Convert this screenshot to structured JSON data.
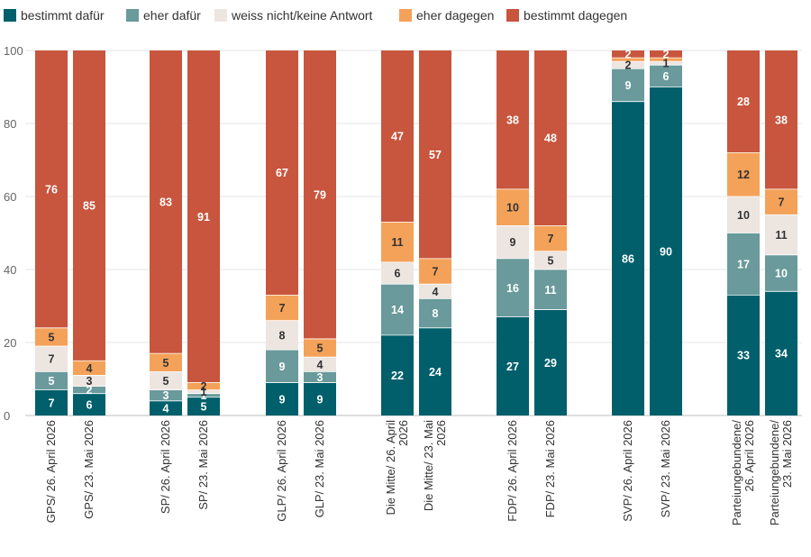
{
  "colors": {
    "bestimmt_dafuer": "#005f6b",
    "eher_dafuer": "#6a9a9b",
    "weiss_nicht": "#ede5e0",
    "eher_dagegen": "#f4a259",
    "bestimmt_dagegen": "#c8553d",
    "grid": "#e6e6e6",
    "axis_text": "#666666"
  },
  "chart_data": {
    "type": "bar",
    "stacked": true,
    "legend_position": "top-left",
    "grid": true,
    "ylim": [
      0,
      100
    ],
    "yticks": [
      0,
      20,
      40,
      60,
      80,
      100
    ],
    "categories": [
      [
        "GPS/ 26. April 2026"
      ],
      [
        "GPS/ 23. Mai 2026"
      ],
      [
        "SP/ 26. April 2026"
      ],
      [
        "SP/ 23. Mai 2026"
      ],
      [
        "GLP/ 26. April 2026"
      ],
      [
        "GLP/ 23. Mai 2026"
      ],
      [
        "Die Mitte/ 26. April",
        "2026"
      ],
      [
        "Die Mitte/ 23. Mai",
        "2026"
      ],
      [
        "FDP/ 26. April 2026"
      ],
      [
        "FDP/ 23. Mai 2026"
      ],
      [
        "SVP/ 26. April 2026"
      ],
      [
        "SVP/ 23. Mai 2026"
      ],
      [
        "Parteiungebundene/",
        "26. April 2026"
      ],
      [
        "Parteiungebundene/",
        "23. Mai 2026"
      ]
    ],
    "series": [
      {
        "name": "bestimmt dafür",
        "color_key": "bestimmt_dafuer",
        "label_color": "#ffffff",
        "values": [
          7,
          6,
          4,
          5,
          9,
          9,
          22,
          24,
          27,
          29,
          86,
          90,
          33,
          34
        ]
      },
      {
        "name": "eher dafür",
        "color_key": "eher_dafuer",
        "label_color": "#ffffff",
        "values": [
          5,
          2,
          3,
          1,
          9,
          3,
          14,
          8,
          16,
          11,
          9,
          6,
          17,
          10
        ]
      },
      {
        "name": "weiss nicht/keine Antwort",
        "color_key": "weiss_nicht",
        "label_color": "#333333",
        "values": [
          7,
          3,
          5,
          1,
          8,
          4,
          6,
          4,
          9,
          5,
          2,
          1,
          10,
          11
        ]
      },
      {
        "name": "eher dagegen",
        "color_key": "eher_dagegen",
        "label_color": "#333333",
        "values": [
          5,
          4,
          5,
          2,
          7,
          5,
          11,
          7,
          10,
          7,
          1,
          1,
          12,
          7
        ]
      },
      {
        "name": "bestimmt dagegen",
        "color_key": "bestimmt_dagegen",
        "label_color": "#ffffff",
        "values": [
          76,
          85,
          83,
          91,
          67,
          79,
          47,
          57,
          38,
          48,
          2,
          2,
          28,
          38
        ]
      }
    ],
    "data_labels": [
      [
        "7",
        "5",
        "7",
        "5",
        "76"
      ],
      [
        "6",
        "2",
        "3",
        "4",
        "85"
      ],
      [
        "4",
        "3",
        "5",
        "5",
        "83"
      ],
      [
        "5",
        "1",
        "1",
        "2",
        "91"
      ],
      [
        "9",
        "9",
        "8",
        "7",
        "67"
      ],
      [
        "9",
        "3",
        "4",
        "5",
        "79"
      ],
      [
        "22",
        "14",
        "6",
        "11",
        "47"
      ],
      [
        "24",
        "8",
        "4",
        "7",
        "57"
      ],
      [
        "27",
        "16",
        "9",
        "10",
        "38"
      ],
      [
        "29",
        "11",
        "5",
        "7",
        "48"
      ],
      [
        "86",
        "9",
        "2",
        "",
        "2"
      ],
      [
        "90",
        "6",
        "1",
        "",
        "2"
      ],
      [
        "33",
        "17",
        "10",
        "12",
        "28"
      ],
      [
        "34",
        "10",
        "11",
        "7",
        "38"
      ]
    ]
  }
}
